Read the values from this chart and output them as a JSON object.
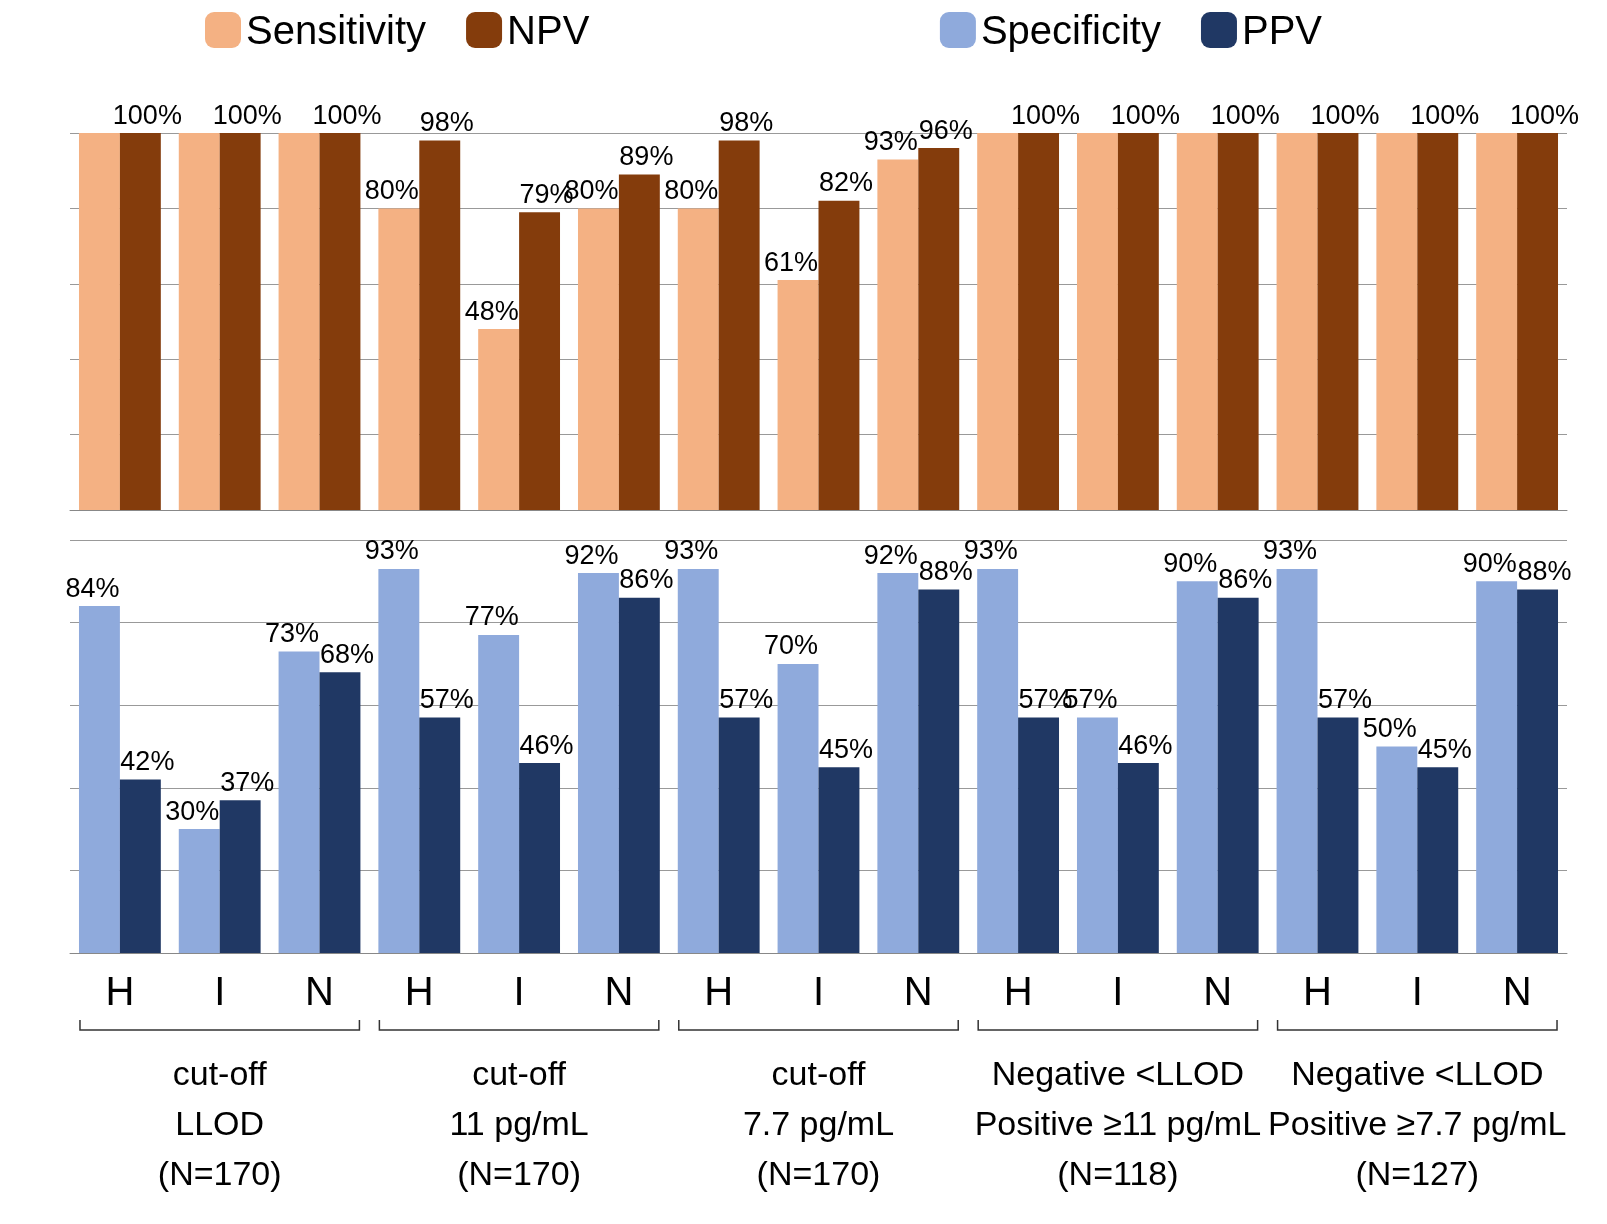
{
  "chart_data": [
    {
      "type": "bar",
      "categories": [
        null,
        null,
        null,
        null,
        null,
        null,
        null,
        null,
        null,
        null,
        null,
        null,
        null,
        null,
        null
      ],
      "ylim": [
        0,
        100
      ],
      "yticks": [
        {
          "value": 0,
          "label": null
        },
        {
          "value": 20,
          "label": null
        },
        {
          "value": 40,
          "label": null
        },
        {
          "value": 60,
          "label": null
        },
        {
          "value": 80,
          "label": null
        },
        {
          "value": 100,
          "label": null
        }
      ],
      "grid": "y",
      "tick_labels": false,
      "legend": "top left",
      "series": [
        {
          "name": "Sensitivity",
          "color": "#f4b183",
          "values": [
            100,
            100,
            100,
            80,
            48,
            80,
            80,
            61,
            93,
            100,
            100,
            100,
            100,
            100,
            100
          ],
          "value_labels": [
            null,
            null,
            null,
            "80%",
            "48%",
            "80%",
            "80%",
            "61%",
            "93%",
            null,
            null,
            null,
            null,
            null,
            null
          ]
        },
        {
          "name": "NPV",
          "color": "#843c0c",
          "values": [
            100,
            100,
            100,
            98,
            79,
            89,
            98,
            82,
            96,
            100,
            100,
            100,
            100,
            100,
            100
          ],
          "value_labels": [
            "100%",
            "100%",
            "100%",
            "98%",
            "79%",
            "89%",
            "98%",
            "82%",
            "96%",
            "100%",
            "100%",
            "100%",
            "100%",
            "100%",
            "100%"
          ]
        }
      ]
    },
    {
      "type": "bar",
      "categories": [
        "H",
        "I",
        "N",
        "H",
        "I",
        "N",
        "H",
        "I",
        "N",
        "H",
        "I",
        "N",
        "H",
        "I",
        "N"
      ],
      "ylim": [
        0,
        100
      ],
      "yticks": [
        {
          "value": 0,
          "label": null
        },
        {
          "value": 20,
          "label": null
        },
        {
          "value": 40,
          "label": null
        },
        {
          "value": 60,
          "label": null
        },
        {
          "value": 80,
          "label": null
        },
        {
          "value": 100,
          "label": null
        }
      ],
      "grid": "y",
      "tick_labels": "x",
      "legend": "top right",
      "annotations": [
        "cut-off\nLLOD\n(N=170)",
        "cut-off\n11 pg/mL\n(N=170)",
        "cut-off\n7.7 pg/mL\n(N=170)",
        "Negative <LLOD\nPositive ≥11 pg/mL\n(N=118)",
        "Negative <LLOD\nPositive ≥7.7 pg/mL\n(N=127)"
      ],
      "series": [
        {
          "name": "Specificity",
          "color": "#8faadc",
          "values": [
            84,
            30,
            73,
            93,
            77,
            92,
            93,
            70,
            92,
            93,
            57,
            90,
            93,
            50,
            90
          ],
          "value_labels": [
            "84%",
            "30%",
            "73%",
            "93%",
            "77%",
            "92%",
            "93%",
            "70%",
            "92%",
            "93%",
            "57%",
            "90%",
            "93%",
            "50%",
            "90%"
          ]
        },
        {
          "name": "PPV",
          "color": "#203864",
          "values": [
            42,
            37,
            68,
            57,
            46,
            86,
            57,
            45,
            88,
            57,
            46,
            86,
            57,
            45,
            88
          ],
          "value_labels": [
            "42%",
            "37%",
            "68%",
            "57%",
            "46%",
            "86%",
            "57%",
            "45%",
            "88%",
            "57%",
            "46%",
            "86%",
            "57%",
            "45%",
            "88%"
          ]
        }
      ]
    }
  ]
}
